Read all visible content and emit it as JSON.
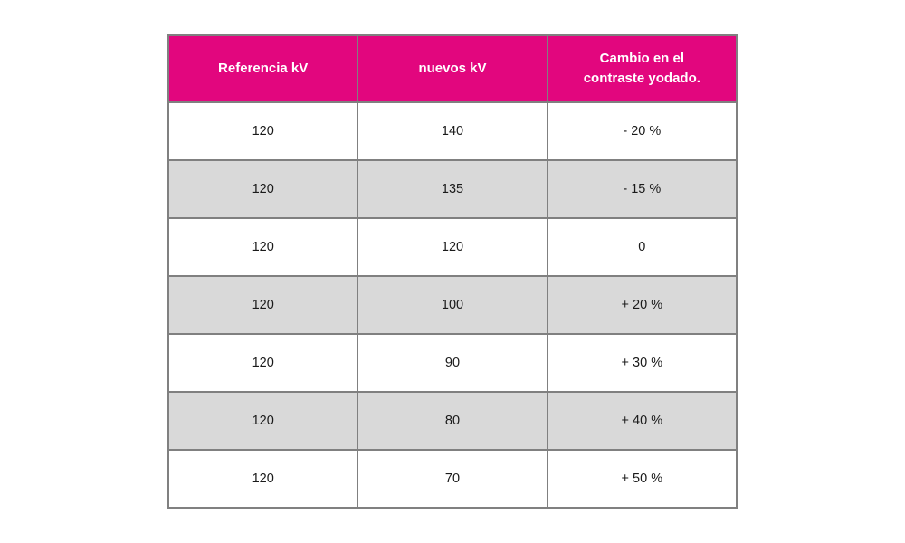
{
  "page": {
    "background_color": "#FFFFFF"
  },
  "table": {
    "columns": [
      "Referencia kV",
      "nuevos kV",
      "Cambio en el contraste yodado."
    ],
    "rows": [
      [
        "120",
        "140",
        "- 20 %"
      ],
      [
        "120",
        "135",
        "- 15 %"
      ],
      [
        "120",
        "120",
        "0"
      ],
      [
        "120",
        "100",
        "+ 20 %"
      ],
      [
        "120",
        "90",
        "+ 30 %"
      ],
      [
        "120",
        "80",
        "+ 40 %"
      ],
      [
        "120",
        "70",
        "+ 50 %"
      ]
    ],
    "colors": {
      "header_bg": "#E2067E",
      "header_text": "#FFFFFF",
      "row_bg": "#FFFFFF",
      "row_alt_bg": "#D9D9D9",
      "border": "#808080",
      "cell_text": "#1A1A1A"
    }
  }
}
